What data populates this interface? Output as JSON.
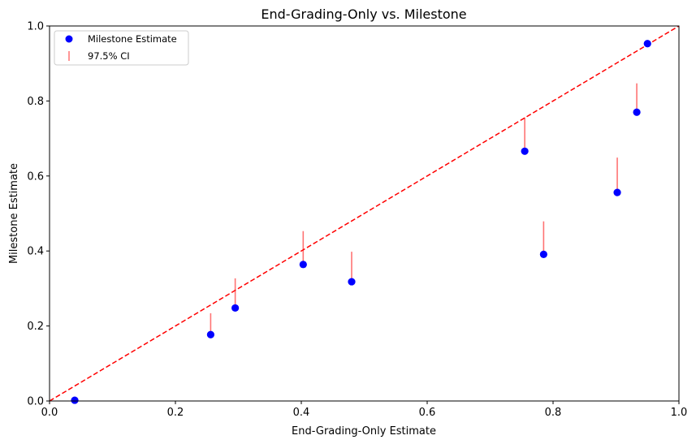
{
  "chart_data": {
    "type": "scatter",
    "title": "End-Grading-Only vs. Milestone",
    "xlabel": "End-Grading-Only Estimate",
    "ylabel": "Milestone Estimate",
    "xlim": [
      0.0,
      1.0
    ],
    "ylim": [
      0.0,
      1.0
    ],
    "xticks": [
      "0.0",
      "0.2",
      "0.4",
      "0.6",
      "0.8",
      "1.0"
    ],
    "yticks": [
      "0.0",
      "0.2",
      "0.4",
      "0.6",
      "0.8",
      "1.0"
    ],
    "grid": false,
    "legend_position": "top-left",
    "series": [
      {
        "name": "Milestone Estimate",
        "kind": "points",
        "color": "#0000ff",
        "points": [
          {
            "x": 0.04,
            "y": 0.002
          },
          {
            "x": 0.256,
            "y": 0.177
          },
          {
            "x": 0.295,
            "y": 0.248
          },
          {
            "x": 0.403,
            "y": 0.364
          },
          {
            "x": 0.48,
            "y": 0.318
          },
          {
            "x": 0.755,
            "y": 0.666
          },
          {
            "x": 0.785,
            "y": 0.391
          },
          {
            "x": 0.902,
            "y": 0.556
          },
          {
            "x": 0.933,
            "y": 0.77
          },
          {
            "x": 0.95,
            "y": 0.953
          }
        ]
      },
      {
        "name": "97.5% CI",
        "kind": "ci-bars",
        "color": "#ff0000",
        "opacity": 0.55,
        "bars": [
          {
            "x": 0.256,
            "low": 0.177,
            "high": 0.234
          },
          {
            "x": 0.295,
            "low": 0.248,
            "high": 0.327
          },
          {
            "x": 0.403,
            "low": 0.364,
            "high": 0.453
          },
          {
            "x": 0.48,
            "low": 0.318,
            "high": 0.398
          },
          {
            "x": 0.755,
            "low": 0.666,
            "high": 0.756
          },
          {
            "x": 0.785,
            "low": 0.391,
            "high": 0.479
          },
          {
            "x": 0.902,
            "low": 0.556,
            "high": 0.649
          },
          {
            "x": 0.933,
            "low": 0.77,
            "high": 0.847
          },
          {
            "x": 0.95,
            "low": 0.953,
            "high": 0.957
          }
        ]
      }
    ],
    "reference_line": {
      "style": "dashed",
      "color": "#ff0000",
      "from": [
        0,
        0
      ],
      "to": [
        1,
        1
      ]
    },
    "legend": [
      {
        "label": "Milestone Estimate"
      },
      {
        "label": "97.5% CI"
      }
    ]
  }
}
